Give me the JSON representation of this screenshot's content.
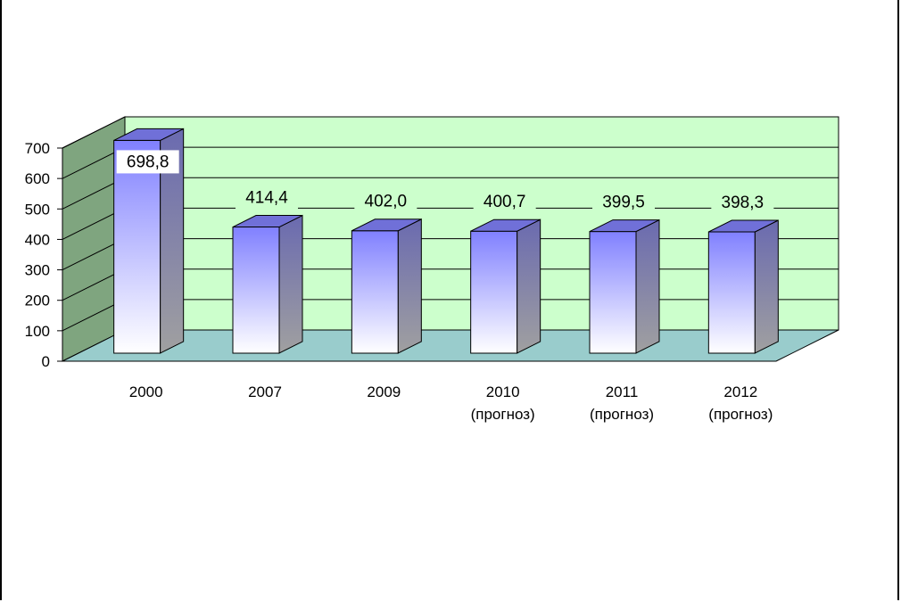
{
  "chart_data": {
    "type": "bar",
    "title": "",
    "xlabel": "",
    "ylabel": "",
    "categories": [
      {
        "year": "2000",
        "note": ""
      },
      {
        "year": "2007",
        "note": ""
      },
      {
        "year": "2009",
        "note": ""
      },
      {
        "year": "2010",
        "note": "(прогноз)"
      },
      {
        "year": "2011",
        "note": "(прогноз)"
      },
      {
        "year": "2012",
        "note": "(прогноз)"
      }
    ],
    "values": [
      698.8,
      414.4,
      402.0,
      400.7,
      399.5,
      398.3
    ],
    "value_labels": [
      "698,8",
      "414,4",
      "402,0",
      "400,7",
      "399,5",
      "398,3"
    ],
    "ylim": [
      0,
      700
    ],
    "yticks": [
      0,
      100,
      200,
      300,
      400,
      500,
      600,
      700
    ],
    "grid": true,
    "legend": "none",
    "colors": {
      "back_wall": "#ccffcc",
      "side_wall": "#7fa57f",
      "floor": "#99cccc",
      "bar_top": "#8080ff",
      "bar_bottom": "#ffffff",
      "bar_side_top": "#6a6ab0",
      "bar_side_bottom": "#a0a0a0",
      "bar_cap": "#7070d8"
    }
  }
}
